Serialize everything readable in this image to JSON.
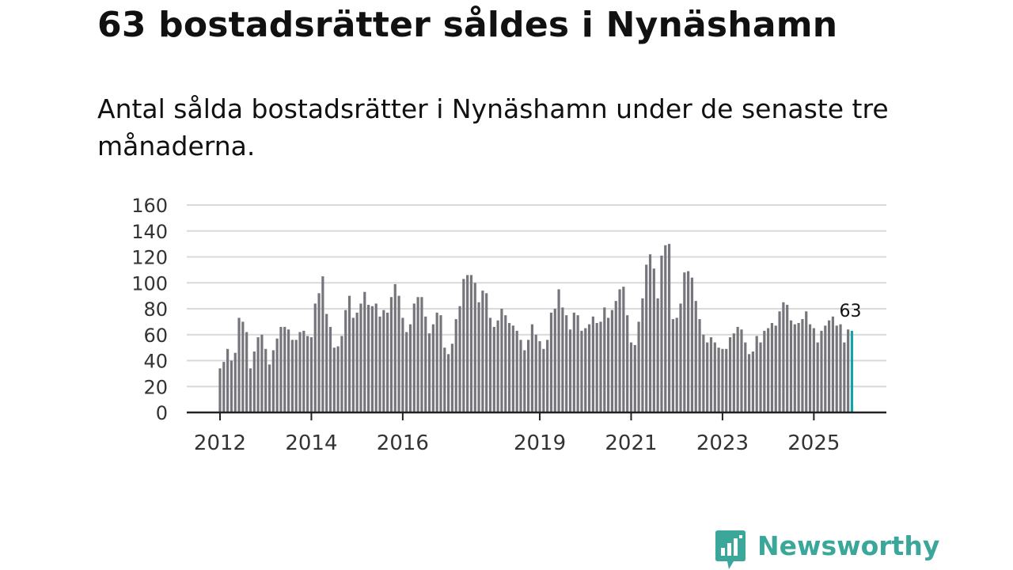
{
  "title": "63 bostadsrätter såldes i Nynäshamn",
  "subtitle": "Antal sålda bostadsrätter i Nynäshamn under de senaste tre månaderna.",
  "brand": {
    "name": "Newsworthy",
    "color": "#3aa79a",
    "icon": "bar-chart-bubble-icon"
  },
  "colors": {
    "bar": "#76757c",
    "highlight": "#14a2a8",
    "grid": "#d9d9d9",
    "axis": "#222222"
  },
  "chart_data": {
    "type": "bar",
    "title": "63 bostadsrätter såldes i Nynäshamn",
    "xlabel": "",
    "ylabel": "",
    "ylim": [
      0,
      160
    ],
    "yticks": [
      "0",
      "20",
      "40",
      "60",
      "80",
      "100",
      "120",
      "140",
      "160"
    ],
    "xticks": [
      {
        "label": "2012",
        "year": 2012
      },
      {
        "label": "2014",
        "year": 2014
      },
      {
        "label": "2016",
        "year": 2016
      },
      {
        "label": "2019",
        "year": 2019
      },
      {
        "label": "2021",
        "year": 2021
      },
      {
        "label": "2023",
        "year": 2023
      },
      {
        "label": "2025",
        "year": 2025
      }
    ],
    "start": "2012-01",
    "frequency": "monthly",
    "values": [
      34,
      39,
      49,
      40,
      46,
      73,
      70,
      62,
      34,
      47,
      58,
      60,
      49,
      37,
      48,
      57,
      66,
      66,
      64,
      56,
      56,
      62,
      63,
      59,
      58,
      84,
      92,
      105,
      76,
      66,
      50,
      51,
      59,
      79,
      90,
      73,
      77,
      84,
      93,
      83,
      82,
      84,
      74,
      79,
      77,
      89,
      99,
      90,
      73,
      62,
      68,
      84,
      89,
      89,
      74,
      61,
      68,
      77,
      75,
      50,
      45,
      53,
      72,
      82,
      103,
      106,
      106,
      100,
      85,
      94,
      92,
      73,
      66,
      71,
      80,
      75,
      69,
      67,
      63,
      56,
      48,
      56,
      68,
      60,
      55,
      49,
      56,
      77,
      80,
      95,
      81,
      75,
      64,
      77,
      75,
      63,
      65,
      68,
      74,
      69,
      70,
      81,
      73,
      79,
      86,
      95,
      97,
      75,
      54,
      52,
      70,
      88,
      114,
      122,
      111,
      88,
      121,
      129,
      130,
      72,
      73,
      84,
      108,
      109,
      104,
      86,
      72,
      60,
      54,
      58,
      54,
      50,
      49,
      49,
      58,
      61,
      66,
      64,
      54,
      45,
      47,
      59,
      54,
      63,
      65,
      69,
      67,
      78,
      85,
      83,
      71,
      68,
      69,
      72,
      78,
      68,
      65,
      54,
      63,
      67,
      71,
      74,
      67,
      68,
      54,
      64,
      63
    ],
    "highlight_last": true,
    "last_label": "63"
  }
}
